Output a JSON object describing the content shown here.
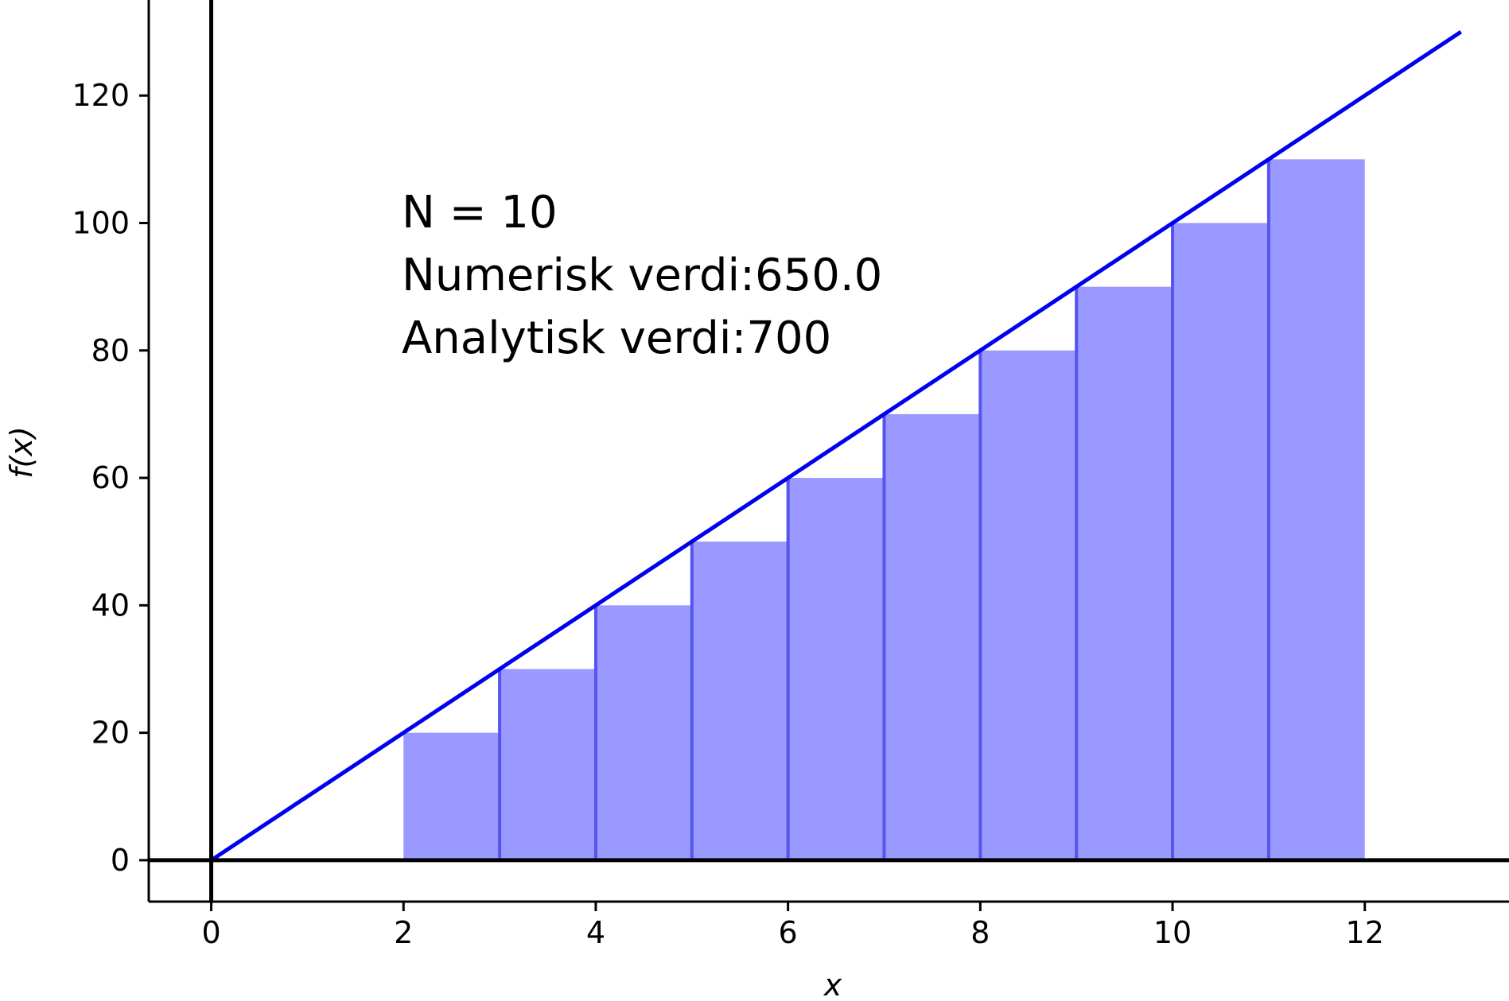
{
  "chart_data": {
    "type": "bar",
    "title": "",
    "xlabel": "x",
    "ylabel": "f(x)",
    "xlim": [
      -0.65,
      13.5
    ],
    "ylim": [
      -6.5,
      135
    ],
    "xticks": [
      0,
      2,
      4,
      6,
      8,
      10,
      12
    ],
    "yticks": [
      0,
      20,
      40,
      60,
      80,
      100,
      120
    ],
    "grid": false,
    "bars": {
      "color": "#9999ff",
      "edge_color": "#5555ee",
      "width": 1,
      "align": "left",
      "x": [
        2,
        3,
        4,
        5,
        6,
        7,
        8,
        9,
        10,
        11
      ],
      "values": [
        20,
        30,
        40,
        50,
        60,
        70,
        80,
        90,
        100,
        110
      ]
    },
    "line": {
      "color": "#0000ee",
      "x": [
        0,
        13
      ],
      "y": [
        0,
        130
      ]
    },
    "annotations": [
      "N = 10",
      "Numerisk verdi:650.0",
      "Analytisk verdi:700"
    ]
  }
}
